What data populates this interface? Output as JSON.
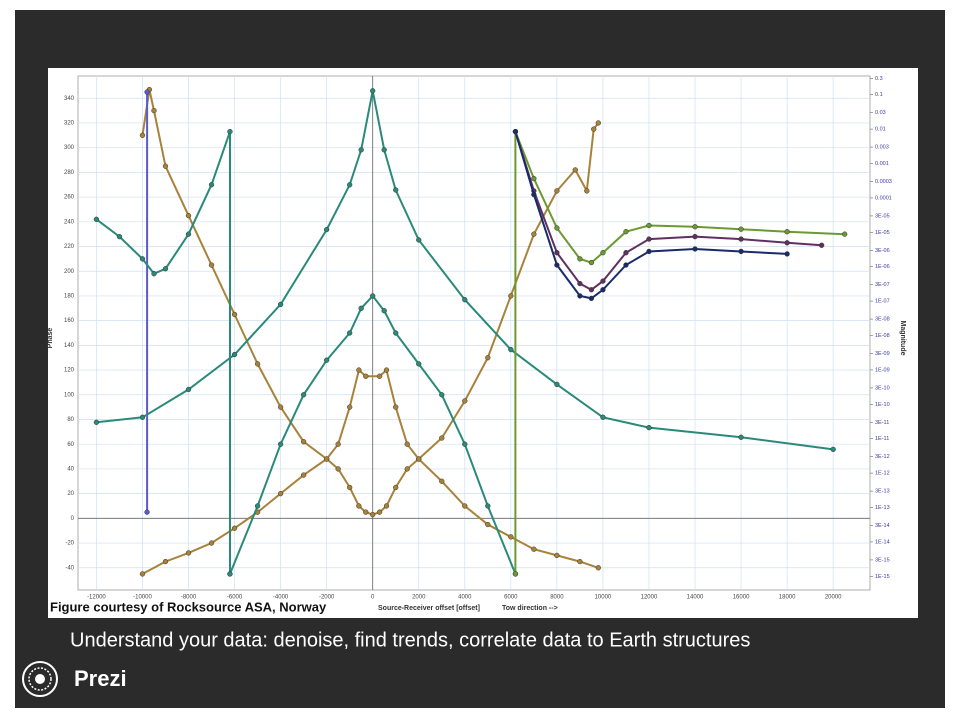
{
  "slide": {
    "caption": "Understand your data: denoise, find trends, correlate data to Earth structures",
    "brand": "Prezi"
  },
  "chart_data": {
    "type": "scatter",
    "credit": "Figure courtesy of Rocksource ASA, Norway",
    "xlabel": "Source-Receiver offset [offset]",
    "annotation": "Tow direction -->",
    "ylabel": "Phase",
    "y2label": "Magnitude",
    "grid": true,
    "xlim": [
      -12800,
      21600
    ],
    "xticks": [
      -12000,
      -10000,
      -8000,
      -6000,
      -4000,
      -2000,
      0,
      2000,
      4000,
      6000,
      8000,
      10000,
      12000,
      14000,
      16000,
      18000,
      20000
    ],
    "ylim": [
      -58,
      358
    ],
    "yticks": [
      -40,
      -20,
      0,
      20,
      40,
      60,
      80,
      100,
      120,
      140,
      160,
      180,
      200,
      220,
      240,
      260,
      280,
      300,
      320,
      340
    ],
    "y2log": true,
    "y2lim": [
      4e-16,
      0.35
    ],
    "y2ticks": [
      0.3,
      0.1,
      0.03,
      0.01,
      0.003,
      0.001,
      0.0003,
      0.0001,
      {
        "value": 3e-05,
        "label": "3E-05"
      },
      {
        "value": 1e-05,
        "label": "1E-05"
      },
      {
        "value": 3e-06,
        "label": "3E-06"
      },
      {
        "value": 1e-06,
        "label": "1E-06"
      },
      {
        "value": 3e-07,
        "label": "3E-07"
      },
      {
        "value": 1e-07,
        "label": "1E-07"
      },
      {
        "value": 3e-08,
        "label": "3E-08"
      },
      {
        "value": 1e-08,
        "label": "1E-08"
      },
      {
        "value": 3e-09,
        "label": "3E-09"
      },
      {
        "value": 1e-09,
        "label": "1E-09"
      },
      {
        "value": 3e-10,
        "label": "3E-10"
      },
      {
        "value": 1e-10,
        "label": "1E-10"
      },
      {
        "value": 3e-11,
        "label": "3E-11"
      },
      {
        "value": 1e-11,
        "label": "1E-11"
      },
      {
        "value": 3e-12,
        "label": "3E-12"
      },
      {
        "value": 1e-12,
        "label": "1E-12"
      },
      {
        "value": 3e-13,
        "label": "3E-13"
      },
      {
        "value": 1e-13,
        "label": "1E-13"
      },
      {
        "value": 3e-14,
        "label": "3E-14"
      },
      {
        "value": 1e-14,
        "label": "1E-14"
      },
      {
        "value": 3e-15,
        "label": "3E-15"
      },
      {
        "value": 1e-15,
        "label": "1E-15"
      }
    ],
    "series": [
      {
        "color": "#a8823a",
        "x": [
          -10000,
          -9700,
          -9500,
          -9000,
          -8000,
          -7000,
          -6000,
          -5000,
          -4000,
          -3000,
          -2000,
          -1500,
          -1000,
          -600,
          -300,
          0,
          300,
          600,
          1000,
          1500,
          2000,
          3000,
          4000,
          5000,
          6000,
          7000,
          8000,
          9000,
          9800
        ],
        "values": [
          310,
          347,
          330,
          285,
          245,
          205,
          165,
          125,
          90,
          62,
          48,
          40,
          25,
          10,
          5,
          3,
          5,
          10,
          25,
          40,
          48,
          30,
          10,
          -5,
          -15,
          -25,
          -30,
          -35,
          -40
        ]
      },
      {
        "color": "#a8823a",
        "x": [
          -10000,
          -9000,
          -8000,
          -7000,
          -6000,
          -5000,
          -4000,
          -3000,
          -2000,
          -1500,
          -1000,
          -600,
          -300,
          300,
          600,
          1000,
          1500,
          2000,
          3000,
          4000,
          5000,
          6000,
          7000,
          8000,
          8800,
          9300,
          9600,
          9800
        ],
        "values": [
          -45,
          -35,
          -28,
          -20,
          -8,
          5,
          20,
          35,
          48,
          60,
          90,
          120,
          115,
          115,
          120,
          90,
          60,
          48,
          65,
          95,
          130,
          180,
          230,
          265,
          282,
          265,
          315,
          320
        ]
      },
      {
        "color": "#5a5ad0",
        "x": [
          -9800,
          -9800
        ],
        "values": [
          345,
          5
        ]
      },
      {
        "color": "#2a8a7a",
        "axis": "y2",
        "x": [
          -12000,
          -10000,
          -8000,
          -6000,
          -4000,
          -2000,
          -1000,
          -500,
          0,
          500,
          1000,
          2000,
          4000,
          6000,
          8000,
          10000,
          12000,
          16000,
          20000
        ],
        "values": [
          3e-11,
          4.2e-11,
          2.7e-10,
          2.8e-09,
          8e-08,
          1.2e-05,
          0.00024,
          0.0025,
          0.13,
          0.0025,
          0.00017,
          6e-06,
          1.1e-07,
          3.9e-09,
          3.8e-10,
          4.2e-11,
          2.1e-11,
          1.1e-11,
          4.9e-12
        ]
      },
      {
        "color": "#2a8a7a",
        "x": [
          -6200,
          -5000,
          -4000,
          -3000,
          -2000,
          -1000,
          -500,
          0,
          500,
          1000,
          2000,
          3000,
          4000,
          5000,
          6200
        ],
        "values": [
          -45,
          10,
          60,
          100,
          128,
          150,
          170,
          180,
          168,
          150,
          125,
          100,
          60,
          10,
          -45
        ]
      },
      {
        "color": "#2a8a7a",
        "x": [
          -12000,
          -11000,
          -10000,
          -9500,
          -9000,
          -8000,
          -7000,
          -6200,
          -6200
        ],
        "values": [
          242,
          228,
          210,
          198,
          202,
          230,
          270,
          313,
          -45
        ]
      },
      {
        "color": "#6a9a30",
        "x": [
          6200,
          6200,
          7000,
          8000,
          9000,
          9500,
          10000,
          11000,
          12000,
          14000,
          16000,
          18000,
          20500
        ],
        "values": [
          -45,
          313,
          275,
          235,
          210,
          207,
          215,
          232,
          237,
          236,
          234,
          232,
          230
        ]
      },
      {
        "color": "#603060",
        "x": [
          6200,
          7000,
          8000,
          9000,
          9500,
          10000,
          11000,
          12000,
          14000,
          16000,
          18000,
          19500
        ],
        "values": [
          313,
          265,
          215,
          190,
          185,
          192,
          215,
          226,
          228,
          226,
          223,
          221
        ]
      },
      {
        "color": "#1a2a6a",
        "x": [
          6200,
          7000,
          8000,
          9000,
          9500,
          10000,
          11000,
          12000,
          14000,
          16000,
          18000
        ],
        "values": [
          313,
          262,
          205,
          180,
          178,
          185,
          205,
          216,
          218,
          216,
          214
        ]
      }
    ]
  }
}
